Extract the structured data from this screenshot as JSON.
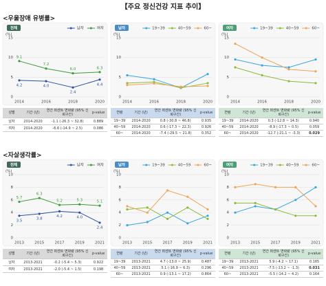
{
  "title": "【주요 정신건강 지표 추이】",
  "sections": [
    {
      "heading": "<우울장애 유병률>",
      "tables": [
        {
          "header": [
            "성별",
            "기간 (년)",
            "연간 퍼센트 변화량 (95% 신뢰구간)",
            "p-value"
          ],
          "header_color": "#d9d9d9",
          "rows": [
            [
              "남자",
              "2014-2020",
              "-1.1 (-26.3 ~ 32.8)",
              "0.889"
            ],
            [
              "여자",
              "2014-2020",
              "-6.6 (-14.9 ~ 2.5)",
              "0.086"
            ]
          ],
          "bold": []
        },
        {
          "header": [
            "연령",
            "기간 (년)",
            "연간 퍼센트 변화량 (95% 신뢰구간)",
            "p-value"
          ],
          "header_color": "#c9d9ee",
          "rows": [
            [
              "19~39",
              "2014-2020",
              "0.8 (-30.8 ~ 46.8)",
              "0.935"
            ],
            [
              "40~59",
              "2014-2020",
              "0.6 (-17.3 ~ 22.3)",
              "0.926"
            ],
            [
              "60~",
              "2014-2020",
              "-7.4 (-29.5 ~ 21.8)",
              "0.352"
            ]
          ],
          "bold": []
        },
        {
          "header": [
            "연령",
            "기간 (년)",
            "연간 퍼센트 변화량 (95% 신뢰구간)",
            "p-value"
          ],
          "header_color": "#cfe5d6",
          "rows": [
            [
              "19~39",
              "2014-2020",
              "0.3 (-12.8 ~ 14.3)",
              "0.940"
            ],
            [
              "40~59",
              "2014-2020",
              "-8.9 (-17.3 ~ 0.5)",
              "0.059"
            ],
            [
              "60~",
              "2014-2020",
              "-12.7 (-21.1 ~ -3.3)",
              "0.029"
            ]
          ],
          "bold": [
            [
              2,
              3
            ]
          ]
        }
      ]
    },
    {
      "heading": "<자살생각률>",
      "tables": [
        {
          "header": [
            "성별",
            "기간 (년)",
            "연간 퍼센트 변화량 (95% 신뢰구간)",
            "p-value"
          ],
          "header_color": "#d9d9d9",
          "rows": [
            [
              "남자",
              "2013-2021",
              "-0.2 (-5.4 ~ 5.3)",
              "0.922"
            ],
            [
              "여자",
              "2013-2021",
              "-2.0 (-5.4 ~ 1.5)",
              "0.198"
            ]
          ],
          "bold": []
        },
        {
          "header": [
            "연령",
            "기간 (년)",
            "연간 퍼센트 변화량 (95% 신뢰구간)",
            "p-value"
          ],
          "header_color": "#c9d9ee",
          "rows": [
            [
              "19~39",
              "2013-2021",
              "4.7 (-13.0 ~ 25.9)",
              "0.487"
            ],
            [
              "40~59",
              "2013-2021",
              "5.1 (-16.9 ~ 6.3)",
              "0.296"
            ],
            [
              "60~",
              "2013-2021",
              "0.9 (-13.1 ~ 17.2)",
              "0.864"
            ]
          ],
          "bold": []
        },
        {
          "header": [
            "연령",
            "기간 (년)",
            "연간 퍼센트 변화량 (95% 신뢰구간)",
            "p-value"
          ],
          "header_color": "#cfe5d6",
          "rows": [
            [
              "19~39",
              "2013-2021",
              "5.9 (-4.2 ~ 17.1)",
              "0.165"
            ],
            [
              "40~59",
              "2013-2021",
              "-7.5 (-13.2 ~ -1.3)",
              "0.031"
            ],
            [
              "60~",
              "2013-2021",
              "-5.5 (-14.2 ~ 4.2)",
              "0.164"
            ]
          ],
          "bold": [
            [
              1,
              3
            ]
          ]
        }
      ]
    }
  ],
  "chart_data": [
    {
      "type": "line",
      "badge": "전체",
      "badge_color": "#3d6b57",
      "y_label": "(%)",
      "x": [
        2014,
        2016,
        2018,
        2020
      ],
      "ylim": [
        0,
        15
      ],
      "yticks": [
        0,
        5,
        10,
        15
      ],
      "grid": true,
      "series": [
        {
          "name": "남자",
          "color": "#2b52a0",
          "values": [
            4.2,
            4.0,
            2.4,
            4.4
          ],
          "value_labels": [
            "4.2",
            "4.0",
            "2.4",
            "4.4"
          ]
        },
        {
          "name": "여자",
          "color": "#3c9a3c",
          "values": [
            9.1,
            7.2,
            6.0,
            6.3
          ],
          "value_labels": [
            "9.1",
            "7.2",
            "6.0",
            "6.3"
          ]
        }
      ]
    },
    {
      "type": "line",
      "badge": "남자",
      "badge_color": "#4a8cc6",
      "y_label": "(%)",
      "x": [
        2014,
        2016,
        2018,
        2020
      ],
      "ylim": [
        0,
        15
      ],
      "yticks": [
        0,
        5,
        10,
        15
      ],
      "grid": true,
      "series": [
        {
          "name": "19~39",
          "color": "#38a6e0",
          "values": [
            5.5,
            4.5,
            2.3,
            5.8
          ]
        },
        {
          "name": "40~59",
          "color": "#8cbb3a",
          "values": [
            3.5,
            3.8,
            2.3,
            3.5
          ]
        },
        {
          "name": "60~",
          "color": "#f0a458",
          "values": [
            3.0,
            3.4,
            2.6,
            2.8
          ]
        }
      ]
    },
    {
      "type": "line",
      "badge": "여자",
      "badge_color": "#4f9d78",
      "y_label": "(%)",
      "x": [
        2014,
        2016,
        2018,
        2020
      ],
      "ylim": [
        0,
        15
      ],
      "yticks": [
        0,
        5,
        10,
        15
      ],
      "grid": true,
      "series": [
        {
          "name": "19~39",
          "color": "#38a6e0",
          "values": [
            9.5,
            8.0,
            7.5,
            9.5
          ]
        },
        {
          "name": "40~59",
          "color": "#8cbb3a",
          "values": [
            7.5,
            5.5,
            4.0,
            3.5
          ]
        },
        {
          "name": "60~",
          "color": "#f0a458",
          "values": [
            13.5,
            10.0,
            7.0,
            6.5
          ]
        }
      ]
    },
    {
      "type": "line",
      "badge": "전체",
      "badge_color": "#3d6b57",
      "y_label": "(%)",
      "x": [
        2013,
        2015,
        2017,
        2019,
        2021
      ],
      "ylim": [
        0,
        10
      ],
      "yticks": [
        0,
        2,
        4,
        6,
        8,
        10
      ],
      "grid": true,
      "series": [
        {
          "name": "남자",
          "color": "#2b52a0",
          "values": [
            3.5,
            3.8,
            4.2,
            4.0,
            2.4
          ],
          "value_labels": [
            "3.5",
            "3.8",
            "4.2",
            "4.0",
            "2.4"
          ]
        },
        {
          "name": "여자",
          "color": "#3c9a3c",
          "values": [
            5.7,
            6.3,
            5.2,
            5.3,
            5.1
          ],
          "value_labels": [
            "5.7",
            "6.3",
            "5.2",
            "5.3",
            "5.1"
          ]
        }
      ]
    },
    {
      "type": "line",
      "badge": "남자",
      "badge_color": "#4a8cc6",
      "y_label": "(%)",
      "x": [
        2013,
        2015,
        2017,
        2019,
        2021
      ],
      "ylim": [
        0,
        10
      ],
      "yticks": [
        0,
        2,
        4,
        6,
        8,
        10
      ],
      "grid": true,
      "series": [
        {
          "name": "19~39",
          "color": "#38a6e0",
          "values": [
            2.0,
            2.5,
            4.0,
            2.3,
            3.5
          ]
        },
        {
          "name": "40~59",
          "color": "#8cbb3a",
          "values": [
            4.5,
            4.8,
            3.0,
            4.8,
            3.0
          ]
        },
        {
          "name": "60~",
          "color": "#f0a458",
          "values": [
            5.0,
            4.0,
            7.5,
            6.5,
            4.5
          ]
        }
      ]
    },
    {
      "type": "line",
      "badge": "여자",
      "badge_color": "#4f9d78",
      "y_label": "(%)",
      "x": [
        2013,
        2015,
        2017,
        2019,
        2021
      ],
      "ylim": [
        0,
        10
      ],
      "yticks": [
        0,
        2,
        4,
        6,
        8,
        10
      ],
      "grid": true,
      "series": [
        {
          "name": "19~39",
          "color": "#38a6e0",
          "values": [
            4.0,
            5.0,
            4.5,
            6.0,
            8.0
          ]
        },
        {
          "name": "40~59",
          "color": "#8cbb3a",
          "values": [
            5.5,
            5.5,
            4.5,
            3.5,
            3.5
          ]
        },
        {
          "name": "60~",
          "color": "#f0a458",
          "values": [
            8.0,
            8.5,
            8.0,
            8.0,
            5.0
          ]
        }
      ]
    }
  ]
}
